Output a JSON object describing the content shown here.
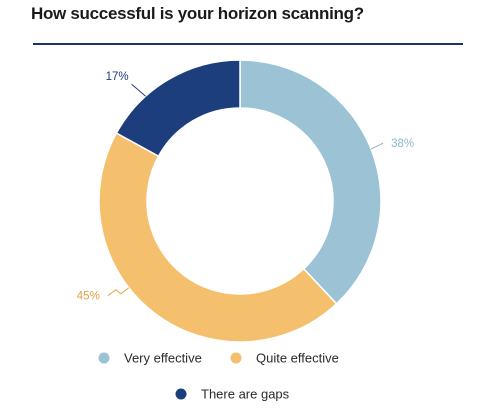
{
  "title": "How successful is your horizon scanning?",
  "colors": {
    "title_rule": "#1d3560",
    "very_effective": "#9bc2d5",
    "quite_effective": "#f5c06e",
    "there_are_gaps": "#1d3e7d",
    "label_light_blue": "#8db8cc",
    "label_orange": "#e5a244",
    "label_dark_blue": "#1d3e7d"
  },
  "chart_data": {
    "type": "pie",
    "variant": "donut",
    "start": "12 o'clock",
    "direction": "clockwise",
    "categories": [
      "Very effective",
      "Quite effective",
      "There are gaps"
    ],
    "values": [
      38,
      45,
      17
    ],
    "unit": "%",
    "data_labels": [
      "38%",
      "45%",
      "17%"
    ],
    "title": "How successful is your horizon scanning?",
    "legend": {
      "placement": "bottom",
      "entries": [
        "Very effective",
        "Quite effective",
        "There are gaps"
      ]
    }
  }
}
